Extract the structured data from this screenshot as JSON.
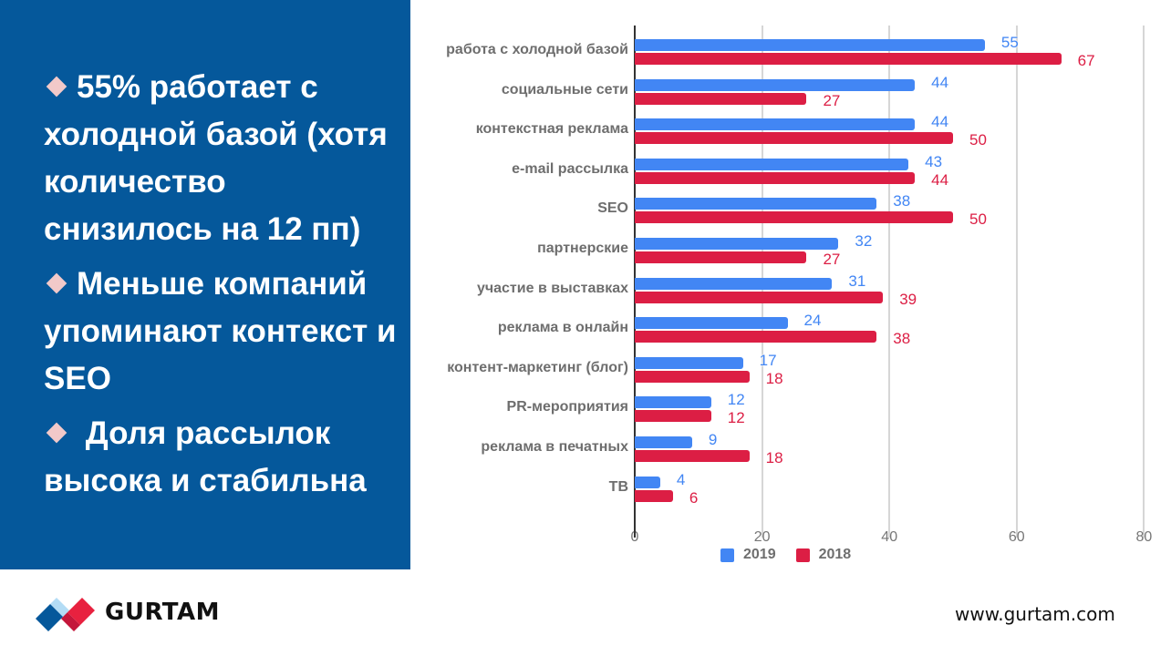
{
  "slide": {
    "bullets": [
      "55% работает с холодной базой (хотя количество снизилось на 12 пп)",
      "Меньше компаний упоминают контекст и SEO",
      " Доля рассылок высока и стабильна"
    ],
    "colors": {
      "panel": "#05589b",
      "marker": "#f2c9c9"
    }
  },
  "chart_data": {
    "type": "bar",
    "orientation": "horizontal",
    "title": "",
    "xlabel": "",
    "ylabel": "",
    "xlim": [
      0,
      80
    ],
    "xticks": [
      "0",
      "20",
      "40",
      "60",
      "80"
    ],
    "grid": true,
    "legend_position": "bottom",
    "categories": [
      "работа с холодной базой",
      "социальные сети",
      "контекстная реклама",
      "e-mail рассылка",
      "SEO",
      "партнерские",
      "участие в выставках",
      "реклама в онлайн",
      "контент-маркетинг (блог)",
      "PR-мероприятия",
      "реклама в печатных",
      "ТВ"
    ],
    "series": [
      {
        "name": "2019",
        "color": "#4286f4",
        "values": [
          55,
          44,
          44,
          43,
          38,
          32,
          31,
          24,
          17,
          12,
          9,
          4
        ]
      },
      {
        "name": "2018",
        "color": "#dc1e44",
        "values": [
          67,
          27,
          50,
          44,
          50,
          27,
          39,
          38,
          18,
          12,
          18,
          6
        ]
      }
    ]
  },
  "footer": {
    "logo_text": "GURTAM",
    "website": "www.gurtam.com"
  }
}
